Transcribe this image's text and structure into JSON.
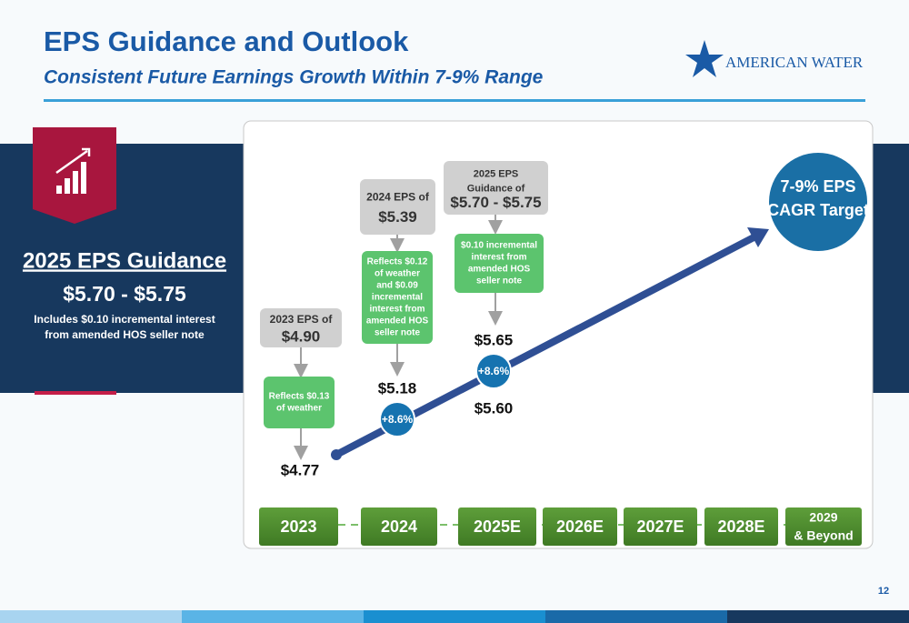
{
  "header": {
    "title": "EPS Guidance and Outlook",
    "subtitle": "Consistent Future Earnings Growth Within 7-9% Range"
  },
  "logo": {
    "text": "AMERICAN WATER"
  },
  "guidance_panel": {
    "title": "2025 EPS Guidance",
    "range": "$5.70 - $5.75",
    "note": [
      "Includes $0.10 incremental interest",
      "from amended HOS seller note"
    ]
  },
  "eps_boxes": [
    {
      "lines": [
        "2023 EPS of",
        "$4.90"
      ]
    },
    {
      "lines": [
        "2024 EPS of",
        "$5.39"
      ]
    },
    {
      "lines": [
        "2025 EPS",
        "Guidance of",
        "$5.70 - $5.75"
      ]
    }
  ],
  "notes": [
    {
      "lines": [
        "Reflects $0.13",
        "of weather"
      ]
    },
    {
      "lines": [
        "Reflects $0.12",
        "of weather",
        "and $0.09",
        "incremental",
        "interest from",
        "amended HOS",
        "seller note"
      ]
    },
    {
      "lines": [
        "$0.10 incremental",
        "interest from",
        "amended HOS",
        "seller note"
      ]
    }
  ],
  "values": [
    "$4.77",
    "$5.18",
    "$5.65",
    "$5.60"
  ],
  "growth": [
    "+8.6%",
    "+8.6%"
  ],
  "target": {
    "lines": [
      "7-9% EPS",
      "CAGR Target"
    ]
  },
  "years": [
    {
      "lines": [
        "2023"
      ]
    },
    {
      "lines": [
        "2024"
      ]
    },
    {
      "lines": [
        "2025E"
      ]
    },
    {
      "lines": [
        "2026E"
      ]
    },
    {
      "lines": [
        "2027E"
      ]
    },
    {
      "lines": [
        "2028E"
      ]
    },
    {
      "lines": [
        "2029",
        "& Beyond"
      ]
    }
  ],
  "page_number": "12"
}
